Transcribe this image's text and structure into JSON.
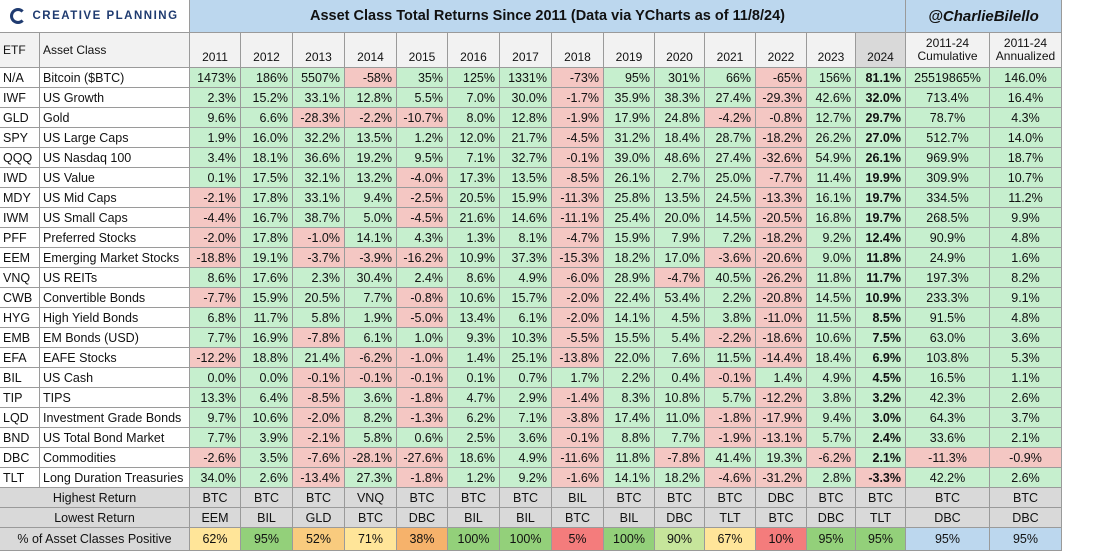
{
  "header": {
    "logo_text": "CREATIVE PLANNING",
    "title": "Asset Class Total Returns Since 2011 (Data via YCharts as of 11/8/24)",
    "handle": "@CharlieBilello"
  },
  "columns": {
    "etf": "ETF",
    "asset_class": "Asset Class",
    "years": [
      "2011",
      "2012",
      "2013",
      "2014",
      "2015",
      "2016",
      "2017",
      "2018",
      "2019",
      "2020",
      "2021",
      "2022",
      "2023",
      "2024"
    ],
    "cumulative_line1": "2011-24",
    "cumulative_line2": "Cumulative",
    "annualized_line1": "2011-24",
    "annualized_line2": "Annualized"
  },
  "colors": {
    "positive": "#c6efce",
    "negative": "#f4c7c3",
    "header_blue": "#bcd7ee",
    "summary_gray": "#d9d9d9"
  },
  "chart_data": {
    "type": "table",
    "title": "Asset Class Total Returns Since 2011 (Data via YCharts as of 11/8/24)",
    "rows": [
      {
        "etf": "N/A",
        "name": "Bitcoin ($BTC)",
        "values": [
          "1473%",
          "186%",
          "5507%",
          "-58%",
          "35%",
          "125%",
          "1331%",
          "-73%",
          "95%",
          "301%",
          "66%",
          "-65%",
          "156%",
          "81.1%"
        ],
        "cumulative": "25519865%",
        "annualized": "146.0%"
      },
      {
        "etf": "IWF",
        "name": "US Growth",
        "values": [
          "2.3%",
          "15.2%",
          "33.1%",
          "12.8%",
          "5.5%",
          "7.0%",
          "30.0%",
          "-1.7%",
          "35.9%",
          "38.3%",
          "27.4%",
          "-29.3%",
          "42.6%",
          "32.0%"
        ],
        "cumulative": "713.4%",
        "annualized": "16.4%"
      },
      {
        "etf": "GLD",
        "name": "Gold",
        "values": [
          "9.6%",
          "6.6%",
          "-28.3%",
          "-2.2%",
          "-10.7%",
          "8.0%",
          "12.8%",
          "-1.9%",
          "17.9%",
          "24.8%",
          "-4.2%",
          "-0.8%",
          "12.7%",
          "29.7%"
        ],
        "cumulative": "78.7%",
        "annualized": "4.3%"
      },
      {
        "etf": "SPY",
        "name": "US Large Caps",
        "values": [
          "1.9%",
          "16.0%",
          "32.2%",
          "13.5%",
          "1.2%",
          "12.0%",
          "21.7%",
          "-4.5%",
          "31.2%",
          "18.4%",
          "28.7%",
          "-18.2%",
          "26.2%",
          "27.0%"
        ],
        "cumulative": "512.7%",
        "annualized": "14.0%"
      },
      {
        "etf": "QQQ",
        "name": "US Nasdaq 100",
        "values": [
          "3.4%",
          "18.1%",
          "36.6%",
          "19.2%",
          "9.5%",
          "7.1%",
          "32.7%",
          "-0.1%",
          "39.0%",
          "48.6%",
          "27.4%",
          "-32.6%",
          "54.9%",
          "26.1%"
        ],
        "cumulative": "969.9%",
        "annualized": "18.7%"
      },
      {
        "etf": "IWD",
        "name": "US Value",
        "values": [
          "0.1%",
          "17.5%",
          "32.1%",
          "13.2%",
          "-4.0%",
          "17.3%",
          "13.5%",
          "-8.5%",
          "26.1%",
          "2.7%",
          "25.0%",
          "-7.7%",
          "11.4%",
          "19.9%"
        ],
        "cumulative": "309.9%",
        "annualized": "10.7%"
      },
      {
        "etf": "MDY",
        "name": "US Mid Caps",
        "values": [
          "-2.1%",
          "17.8%",
          "33.1%",
          "9.4%",
          "-2.5%",
          "20.5%",
          "15.9%",
          "-11.3%",
          "25.8%",
          "13.5%",
          "24.5%",
          "-13.3%",
          "16.1%",
          "19.7%"
        ],
        "cumulative": "334.5%",
        "annualized": "11.2%"
      },
      {
        "etf": "IWM",
        "name": "US Small Caps",
        "values": [
          "-4.4%",
          "16.7%",
          "38.7%",
          "5.0%",
          "-4.5%",
          "21.6%",
          "14.6%",
          "-11.1%",
          "25.4%",
          "20.0%",
          "14.5%",
          "-20.5%",
          "16.8%",
          "19.7%"
        ],
        "cumulative": "268.5%",
        "annualized": "9.9%"
      },
      {
        "etf": "PFF",
        "name": "Preferred Stocks",
        "values": [
          "-2.0%",
          "17.8%",
          "-1.0%",
          "14.1%",
          "4.3%",
          "1.3%",
          "8.1%",
          "-4.7%",
          "15.9%",
          "7.9%",
          "7.2%",
          "-18.2%",
          "9.2%",
          "12.4%"
        ],
        "cumulative": "90.9%",
        "annualized": "4.8%"
      },
      {
        "etf": "EEM",
        "name": "Emerging Market Stocks",
        "values": [
          "-18.8%",
          "19.1%",
          "-3.7%",
          "-3.9%",
          "-16.2%",
          "10.9%",
          "37.3%",
          "-15.3%",
          "18.2%",
          "17.0%",
          "-3.6%",
          "-20.6%",
          "9.0%",
          "11.8%"
        ],
        "cumulative": "24.9%",
        "annualized": "1.6%"
      },
      {
        "etf": "VNQ",
        "name": "US REITs",
        "values": [
          "8.6%",
          "17.6%",
          "2.3%",
          "30.4%",
          "2.4%",
          "8.6%",
          "4.9%",
          "-6.0%",
          "28.9%",
          "-4.7%",
          "40.5%",
          "-26.2%",
          "11.8%",
          "11.7%"
        ],
        "cumulative": "197.3%",
        "annualized": "8.2%"
      },
      {
        "etf": "CWB",
        "name": "Convertible Bonds",
        "values": [
          "-7.7%",
          "15.9%",
          "20.5%",
          "7.7%",
          "-0.8%",
          "10.6%",
          "15.7%",
          "-2.0%",
          "22.4%",
          "53.4%",
          "2.2%",
          "-20.8%",
          "14.5%",
          "10.9%"
        ],
        "cumulative": "233.3%",
        "annualized": "9.1%"
      },
      {
        "etf": "HYG",
        "name": "High Yield Bonds",
        "values": [
          "6.8%",
          "11.7%",
          "5.8%",
          "1.9%",
          "-5.0%",
          "13.4%",
          "6.1%",
          "-2.0%",
          "14.1%",
          "4.5%",
          "3.8%",
          "-11.0%",
          "11.5%",
          "8.5%"
        ],
        "cumulative": "91.5%",
        "annualized": "4.8%"
      },
      {
        "etf": "EMB",
        "name": "EM Bonds (USD)",
        "values": [
          "7.7%",
          "16.9%",
          "-7.8%",
          "6.1%",
          "1.0%",
          "9.3%",
          "10.3%",
          "-5.5%",
          "15.5%",
          "5.4%",
          "-2.2%",
          "-18.6%",
          "10.6%",
          "7.5%"
        ],
        "cumulative": "63.0%",
        "annualized": "3.6%"
      },
      {
        "etf": "EFA",
        "name": "EAFE Stocks",
        "values": [
          "-12.2%",
          "18.8%",
          "21.4%",
          "-6.2%",
          "-1.0%",
          "1.4%",
          "25.1%",
          "-13.8%",
          "22.0%",
          "7.6%",
          "11.5%",
          "-14.4%",
          "18.4%",
          "6.9%"
        ],
        "cumulative": "103.8%",
        "annualized": "5.3%"
      },
      {
        "etf": "BIL",
        "name": "US Cash",
        "values": [
          "0.0%",
          "0.0%",
          "-0.1%",
          "-0.1%",
          "-0.1%",
          "0.1%",
          "0.7%",
          "1.7%",
          "2.2%",
          "0.4%",
          "-0.1%",
          "1.4%",
          "4.9%",
          "4.5%"
        ],
        "cumulative": "16.5%",
        "annualized": "1.1%"
      },
      {
        "etf": "TIP",
        "name": "TIPS",
        "values": [
          "13.3%",
          "6.4%",
          "-8.5%",
          "3.6%",
          "-1.8%",
          "4.7%",
          "2.9%",
          "-1.4%",
          "8.3%",
          "10.8%",
          "5.7%",
          "-12.2%",
          "3.8%",
          "3.2%"
        ],
        "cumulative": "42.3%",
        "annualized": "2.6%"
      },
      {
        "etf": "LQD",
        "name": "Investment Grade Bonds",
        "values": [
          "9.7%",
          "10.6%",
          "-2.0%",
          "8.2%",
          "-1.3%",
          "6.2%",
          "7.1%",
          "-3.8%",
          "17.4%",
          "11.0%",
          "-1.8%",
          "-17.9%",
          "9.4%",
          "3.0%"
        ],
        "cumulative": "64.3%",
        "annualized": "3.7%"
      },
      {
        "etf": "BND",
        "name": "US Total Bond Market",
        "values": [
          "7.7%",
          "3.9%",
          "-2.1%",
          "5.8%",
          "0.6%",
          "2.5%",
          "3.6%",
          "-0.1%",
          "8.8%",
          "7.7%",
          "-1.9%",
          "-13.1%",
          "5.7%",
          "2.4%"
        ],
        "cumulative": "33.6%",
        "annualized": "2.1%"
      },
      {
        "etf": "DBC",
        "name": "Commodities",
        "values": [
          "-2.6%",
          "3.5%",
          "-7.6%",
          "-28.1%",
          "-27.6%",
          "18.6%",
          "4.9%",
          "-11.6%",
          "11.8%",
          "-7.8%",
          "41.4%",
          "19.3%",
          "-6.2%",
          "2.1%"
        ],
        "cumulative": "-11.3%",
        "annualized": "-0.9%"
      },
      {
        "etf": "TLT",
        "name": "Long Duration Treasuries",
        "values": [
          "34.0%",
          "2.6%",
          "-13.4%",
          "27.3%",
          "-1.8%",
          "1.2%",
          "9.2%",
          "-1.6%",
          "14.1%",
          "18.2%",
          "-4.6%",
          "-31.2%",
          "2.8%",
          "-3.3%"
        ],
        "cumulative": "42.2%",
        "annualized": "2.6%"
      }
    ],
    "summary": {
      "highest": {
        "label": "Highest Return",
        "values": [
          "BTC",
          "BTC",
          "BTC",
          "VNQ",
          "BTC",
          "BTC",
          "BTC",
          "BIL",
          "BTC",
          "BTC",
          "BTC",
          "DBC",
          "BTC",
          "BTC"
        ],
        "cumulative": "BTC",
        "annualized": "BTC"
      },
      "lowest": {
        "label": "Lowest Return",
        "values": [
          "EEM",
          "BIL",
          "GLD",
          "BTC",
          "DBC",
          "BIL",
          "BIL",
          "BTC",
          "BIL",
          "DBC",
          "TLT",
          "BTC",
          "DBC",
          "TLT"
        ],
        "cumulative": "DBC",
        "annualized": "DBC"
      },
      "positive": {
        "label": "% of Asset Classes Positive",
        "values": [
          "62%",
          "95%",
          "52%",
          "71%",
          "38%",
          "100%",
          "100%",
          "5%",
          "100%",
          "90%",
          "67%",
          "10%",
          "95%",
          "95%"
        ],
        "cumulative": "95%",
        "annualized": "95%"
      }
    }
  }
}
